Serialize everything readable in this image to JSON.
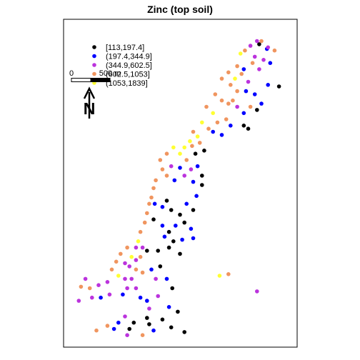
{
  "chart_data": {
    "type": "scatter",
    "title": "Zinc (top soil)",
    "legend": {
      "placement": "top-left",
      "entries": [
        {
          "label": "[113,197.4]",
          "color": "#000000"
        },
        {
          "label": "(197.4,344.9]",
          "color": "#0000ff"
        },
        {
          "label": "(344.9,602.5]",
          "color": "#bb33dd"
        },
        {
          "label": "(602.5,1053]",
          "color": "#f0955f"
        },
        {
          "label": "(1053,1839]",
          "color": "#ffff33"
        }
      ]
    },
    "scalebar": {
      "start_label": "0",
      "end_label": "500 m"
    },
    "north_arrow": {
      "label": "N"
    },
    "xlim": [
      0,
      1
    ],
    "ylim": [
      0,
      1
    ],
    "points": [
      {
        "x": 0.86,
        "y": 0.95,
        "c": 0
      },
      {
        "x": 0.895,
        "y": 0.935,
        "c": 1
      },
      {
        "x": 0.9,
        "y": 0.94,
        "c": 2
      },
      {
        "x": 0.93,
        "y": 0.93,
        "c": 3
      },
      {
        "x": 0.82,
        "y": 0.945,
        "c": 2
      },
      {
        "x": 0.85,
        "y": 0.96,
        "c": 2
      },
      {
        "x": 0.87,
        "y": 0.96,
        "c": 3
      },
      {
        "x": 0.775,
        "y": 0.92,
        "c": 4
      },
      {
        "x": 0.795,
        "y": 0.93,
        "c": 3
      },
      {
        "x": 0.84,
        "y": 0.91,
        "c": 2
      },
      {
        "x": 0.88,
        "y": 0.9,
        "c": 2
      },
      {
        "x": 0.91,
        "y": 0.89,
        "c": 1
      },
      {
        "x": 0.76,
        "y": 0.88,
        "c": 3
      },
      {
        "x": 0.79,
        "y": 0.87,
        "c": 1
      },
      {
        "x": 0.83,
        "y": 0.89,
        "c": 3
      },
      {
        "x": 0.86,
        "y": 0.87,
        "c": 2
      },
      {
        "x": 0.72,
        "y": 0.86,
        "c": 3
      },
      {
        "x": 0.75,
        "y": 0.84,
        "c": 4
      },
      {
        "x": 0.78,
        "y": 0.855,
        "c": 3
      },
      {
        "x": 0.81,
        "y": 0.83,
        "c": 2
      },
      {
        "x": 0.69,
        "y": 0.84,
        "c": 3
      },
      {
        "x": 0.73,
        "y": 0.82,
        "c": 3
      },
      {
        "x": 0.76,
        "y": 0.8,
        "c": 3
      },
      {
        "x": 0.8,
        "y": 0.8,
        "c": 1
      },
      {
        "x": 0.84,
        "y": 0.79,
        "c": 1
      },
      {
        "x": 0.9,
        "y": 0.82,
        "c": 1
      },
      {
        "x": 0.95,
        "y": 0.815,
        "c": 0
      },
      {
        "x": 0.66,
        "y": 0.79,
        "c": 3
      },
      {
        "x": 0.69,
        "y": 0.77,
        "c": 3
      },
      {
        "x": 0.72,
        "y": 0.76,
        "c": 3
      },
      {
        "x": 0.74,
        "y": 0.77,
        "c": 3
      },
      {
        "x": 0.76,
        "y": 0.75,
        "c": 2
      },
      {
        "x": 0.79,
        "y": 0.73,
        "c": 1
      },
      {
        "x": 0.82,
        "y": 0.75,
        "c": 3
      },
      {
        "x": 0.85,
        "y": 0.74,
        "c": 0
      },
      {
        "x": 0.87,
        "y": 0.76,
        "c": 1
      },
      {
        "x": 0.62,
        "y": 0.75,
        "c": 3
      },
      {
        "x": 0.65,
        "y": 0.73,
        "c": 4
      },
      {
        "x": 0.67,
        "y": 0.7,
        "c": 3
      },
      {
        "x": 0.71,
        "y": 0.71,
        "c": 3
      },
      {
        "x": 0.73,
        "y": 0.69,
        "c": 1
      },
      {
        "x": 0.79,
        "y": 0.69,
        "c": 0
      },
      {
        "x": 0.81,
        "y": 0.68,
        "c": 0
      },
      {
        "x": 0.6,
        "y": 0.7,
        "c": 4
      },
      {
        "x": 0.63,
        "y": 0.68,
        "c": 3
      },
      {
        "x": 0.65,
        "y": 0.67,
        "c": 1
      },
      {
        "x": 0.69,
        "y": 0.66,
        "c": 1
      },
      {
        "x": 0.56,
        "y": 0.67,
        "c": 3
      },
      {
        "x": 0.58,
        "y": 0.655,
        "c": 4
      },
      {
        "x": 0.545,
        "y": 0.64,
        "c": 4
      },
      {
        "x": 0.555,
        "y": 0.625,
        "c": 3
      },
      {
        "x": 0.52,
        "y": 0.62,
        "c": 4
      },
      {
        "x": 0.59,
        "y": 0.635,
        "c": 3
      },
      {
        "x": 0.57,
        "y": 0.6,
        "c": 0
      },
      {
        "x": 0.61,
        "y": 0.61,
        "c": 0
      },
      {
        "x": 0.53,
        "y": 0.58,
        "c": 3
      },
      {
        "x": 0.5,
        "y": 0.6,
        "c": 4
      },
      {
        "x": 0.47,
        "y": 0.62,
        "c": 4
      },
      {
        "x": 0.44,
        "y": 0.6,
        "c": 3
      },
      {
        "x": 0.41,
        "y": 0.58,
        "c": 3
      },
      {
        "x": 0.42,
        "y": 0.55,
        "c": 3
      },
      {
        "x": 0.44,
        "y": 0.53,
        "c": 3
      },
      {
        "x": 0.46,
        "y": 0.56,
        "c": 2
      },
      {
        "x": 0.5,
        "y": 0.555,
        "c": 1
      },
      {
        "x": 0.475,
        "y": 0.515,
        "c": 1
      },
      {
        "x": 0.52,
        "y": 0.53,
        "c": 2
      },
      {
        "x": 0.55,
        "y": 0.55,
        "c": 2
      },
      {
        "x": 0.58,
        "y": 0.56,
        "c": 1
      },
      {
        "x": 0.6,
        "y": 0.53,
        "c": 0
      },
      {
        "x": 0.56,
        "y": 0.51,
        "c": 1
      },
      {
        "x": 0.6,
        "y": 0.5,
        "c": 0
      },
      {
        "x": 0.575,
        "y": 0.465,
        "c": 1
      },
      {
        "x": 0.39,
        "y": 0.515,
        "c": 3
      },
      {
        "x": 0.38,
        "y": 0.49,
        "c": 3
      },
      {
        "x": 0.37,
        "y": 0.46,
        "c": 3
      },
      {
        "x": 0.36,
        "y": 0.44,
        "c": 3
      },
      {
        "x": 0.385,
        "y": 0.44,
        "c": 1
      },
      {
        "x": 0.42,
        "y": 0.43,
        "c": 1
      },
      {
        "x": 0.44,
        "y": 0.45,
        "c": 0
      },
      {
        "x": 0.46,
        "y": 0.42,
        "c": 0
      },
      {
        "x": 0.5,
        "y": 0.405,
        "c": 0
      },
      {
        "x": 0.53,
        "y": 0.44,
        "c": 1
      },
      {
        "x": 0.56,
        "y": 0.42,
        "c": 0
      },
      {
        "x": 0.35,
        "y": 0.41,
        "c": 3
      },
      {
        "x": 0.34,
        "y": 0.38,
        "c": 3
      },
      {
        "x": 0.38,
        "y": 0.39,
        "c": 0
      },
      {
        "x": 0.42,
        "y": 0.37,
        "c": 1
      },
      {
        "x": 0.45,
        "y": 0.35,
        "c": 0
      },
      {
        "x": 0.48,
        "y": 0.37,
        "c": 1
      },
      {
        "x": 0.52,
        "y": 0.38,
        "c": 0
      },
      {
        "x": 0.55,
        "y": 0.36,
        "c": 1
      },
      {
        "x": 0.56,
        "y": 0.33,
        "c": 1
      },
      {
        "x": 0.51,
        "y": 0.325,
        "c": 1
      },
      {
        "x": 0.47,
        "y": 0.32,
        "c": 0
      },
      {
        "x": 0.43,
        "y": 0.335,
        "c": 1
      },
      {
        "x": 0.32,
        "y": 0.35,
        "c": 3
      },
      {
        "x": 0.31,
        "y": 0.32,
        "c": 4
      },
      {
        "x": 0.3,
        "y": 0.3,
        "c": 2
      },
      {
        "x": 0.33,
        "y": 0.3,
        "c": 2
      },
      {
        "x": 0.35,
        "y": 0.29,
        "c": 0
      },
      {
        "x": 0.4,
        "y": 0.29,
        "c": 0
      },
      {
        "x": 0.45,
        "y": 0.3,
        "c": 0
      },
      {
        "x": 0.5,
        "y": 0.28,
        "c": 0
      },
      {
        "x": 0.26,
        "y": 0.3,
        "c": 3
      },
      {
        "x": 0.28,
        "y": 0.27,
        "c": 4
      },
      {
        "x": 0.3,
        "y": 0.26,
        "c": 2
      },
      {
        "x": 0.32,
        "y": 0.27,
        "c": 3
      },
      {
        "x": 0.23,
        "y": 0.28,
        "c": 3
      },
      {
        "x": 0.21,
        "y": 0.255,
        "c": 3
      },
      {
        "x": 0.25,
        "y": 0.25,
        "c": 2
      },
      {
        "x": 0.27,
        "y": 0.24,
        "c": 2
      },
      {
        "x": 0.3,
        "y": 0.23,
        "c": 3
      },
      {
        "x": 0.33,
        "y": 0.22,
        "c": 3
      },
      {
        "x": 0.37,
        "y": 0.23,
        "c": 1
      },
      {
        "x": 0.41,
        "y": 0.24,
        "c": 0
      },
      {
        "x": 0.44,
        "y": 0.2,
        "c": 1
      },
      {
        "x": 0.465,
        "y": 0.17,
        "c": 0
      },
      {
        "x": 0.39,
        "y": 0.2,
        "c": 2
      },
      {
        "x": 0.19,
        "y": 0.23,
        "c": 3
      },
      {
        "x": 0.22,
        "y": 0.21,
        "c": 4
      },
      {
        "x": 0.25,
        "y": 0.2,
        "c": 2
      },
      {
        "x": 0.28,
        "y": 0.2,
        "c": 2
      },
      {
        "x": 0.26,
        "y": 0.17,
        "c": 2
      },
      {
        "x": 0.3,
        "y": 0.17,
        "c": 2
      },
      {
        "x": 0.32,
        "y": 0.14,
        "c": 1
      },
      {
        "x": 0.35,
        "y": 0.13,
        "c": 1
      },
      {
        "x": 0.36,
        "y": 0.105,
        "c": 2
      },
      {
        "x": 0.35,
        "y": 0.075,
        "c": 0
      },
      {
        "x": 0.36,
        "y": 0.055,
        "c": 0
      },
      {
        "x": 0.38,
        "y": 0.035,
        "c": 1
      },
      {
        "x": 0.42,
        "y": 0.07,
        "c": 0
      },
      {
        "x": 0.46,
        "y": 0.045,
        "c": 0
      },
      {
        "x": 0.49,
        "y": 0.095,
        "c": 0
      },
      {
        "x": 0.52,
        "y": 0.03,
        "c": 0
      },
      {
        "x": 0.45,
        "y": 0.11,
        "c": 1
      },
      {
        "x": 0.4,
        "y": 0.145,
        "c": 2
      },
      {
        "x": 0.13,
        "y": 0.18,
        "c": 2
      },
      {
        "x": 0.14,
        "y": 0.14,
        "c": 1
      },
      {
        "x": 0.18,
        "y": 0.15,
        "c": 2
      },
      {
        "x": 0.17,
        "y": 0.19,
        "c": 2
      },
      {
        "x": 0.04,
        "y": 0.13,
        "c": 2
      },
      {
        "x": 0.1,
        "y": 0.14,
        "c": 2
      },
      {
        "x": 0.09,
        "y": 0.17,
        "c": 3
      },
      {
        "x": 0.07,
        "y": 0.2,
        "c": 2
      },
      {
        "x": 0.05,
        "y": 0.175,
        "c": 3
      },
      {
        "x": 0.22,
        "y": 0.06,
        "c": 1
      },
      {
        "x": 0.25,
        "y": 0.08,
        "c": 2
      },
      {
        "x": 0.27,
        "y": 0.04,
        "c": 0
      },
      {
        "x": 0.29,
        "y": 0.06,
        "c": 0
      },
      {
        "x": 0.17,
        "y": 0.05,
        "c": 3
      },
      {
        "x": 0.26,
        "y": 0.02,
        "c": 2
      },
      {
        "x": 0.33,
        "y": 0.02,
        "c": 3
      },
      {
        "x": 0.12,
        "y": 0.035,
        "c": 3
      },
      {
        "x": 0.2,
        "y": 0.04,
        "c": 1
      },
      {
        "x": 0.24,
        "y": 0.15,
        "c": 1
      },
      {
        "x": 0.68,
        "y": 0.21,
        "c": 4
      },
      {
        "x": 0.72,
        "y": 0.215,
        "c": 3
      },
      {
        "x": 0.85,
        "y": 0.16,
        "c": 2
      }
    ]
  }
}
